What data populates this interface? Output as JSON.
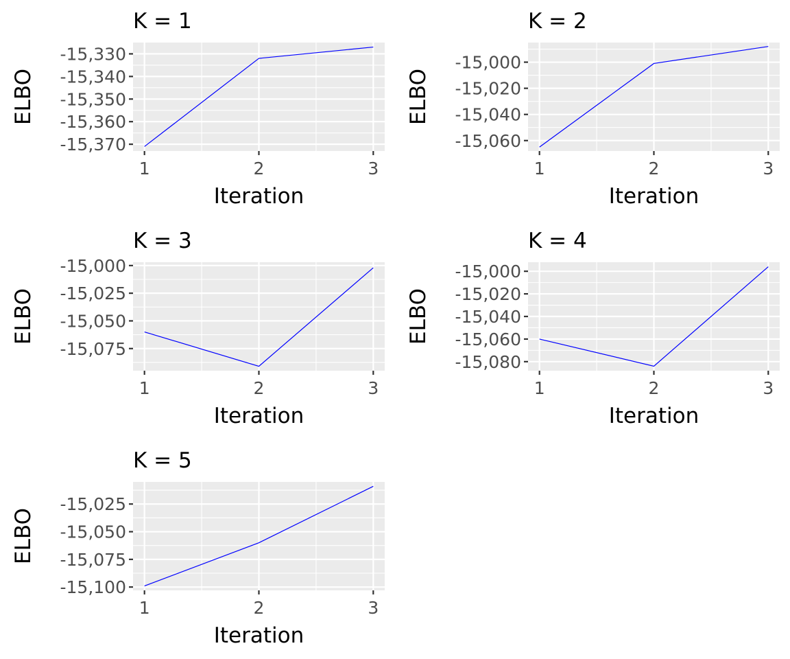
{
  "chart_data": [
    {
      "type": "line",
      "title": "K = 1",
      "xlabel": "Iteration",
      "ylabel": "ELBO",
      "x": [
        1,
        2,
        3
      ],
      "series": [
        {
          "values": [
            -15371,
            -15332,
            -15327
          ]
        }
      ],
      "xticks": [
        1,
        2,
        3
      ],
      "xtick_labels": [
        "1",
        "2",
        "3"
      ],
      "yticks": [
        -15370,
        -15360,
        -15350,
        -15340,
        -15330
      ],
      "ytick_labels": [
        "-15,370",
        "-15,360",
        "-15,350",
        "-15,340",
        "-15,330"
      ],
      "xlim": [
        0.9,
        3.1
      ],
      "ylim": [
        -15373,
        -15325
      ],
      "grid": true,
      "color": "#0000ff"
    },
    {
      "type": "line",
      "title": "K = 2",
      "xlabel": "Iteration",
      "ylabel": "ELBO",
      "x": [
        1,
        2,
        3
      ],
      "series": [
        {
          "values": [
            -15065,
            -15001,
            -14988
          ]
        }
      ],
      "xticks": [
        1,
        2,
        3
      ],
      "xtick_labels": [
        "1",
        "2",
        "3"
      ],
      "yticks": [
        -15060,
        -15040,
        -15020,
        -15000
      ],
      "ytick_labels": [
        "-15,060",
        "-15,040",
        "-15,020",
        "-15,000"
      ],
      "xlim": [
        0.9,
        3.1
      ],
      "ylim": [
        -15068,
        -14985
      ],
      "grid": true,
      "color": "#0000ff"
    },
    {
      "type": "line",
      "title": "K = 3",
      "xlabel": "Iteration",
      "ylabel": "ELBO",
      "x": [
        1,
        2,
        3
      ],
      "series": [
        {
          "values": [
            -15060,
            -15091,
            -15002
          ]
        }
      ],
      "xticks": [
        1,
        2,
        3
      ],
      "xtick_labels": [
        "1",
        "2",
        "3"
      ],
      "yticks": [
        -15075,
        -15050,
        -15025,
        -15000
      ],
      "ytick_labels": [
        "-15,075",
        "-15,050",
        "-15,025",
        "-15,000"
      ],
      "xlim": [
        0.9,
        3.1
      ],
      "ylim": [
        -15095,
        -14997
      ],
      "grid": true,
      "color": "#0000ff"
    },
    {
      "type": "line",
      "title": "K = 4",
      "xlabel": "Iteration",
      "ylabel": "ELBO",
      "x": [
        1,
        2,
        3
      ],
      "series": [
        {
          "values": [
            -15060,
            -15084,
            -14996
          ]
        }
      ],
      "xticks": [
        1,
        2,
        3
      ],
      "xtick_labels": [
        "1",
        "2",
        "3"
      ],
      "yticks": [
        -15080,
        -15060,
        -15040,
        -15020,
        -15000
      ],
      "ytick_labels": [
        "-15,080",
        "-15,060",
        "-15,040",
        "-15,020",
        "-15,000"
      ],
      "xlim": [
        0.9,
        3.1
      ],
      "ylim": [
        -15088,
        -14992
      ],
      "grid": true,
      "color": "#0000ff"
    },
    {
      "type": "line",
      "title": "K = 5",
      "xlabel": "Iteration",
      "ylabel": "ELBO",
      "x": [
        1,
        2,
        3
      ],
      "series": [
        {
          "values": [
            -15099,
            -15060,
            -15009
          ]
        }
      ],
      "xticks": [
        1,
        2,
        3
      ],
      "xtick_labels": [
        "1",
        "2",
        "3"
      ],
      "yticks": [
        -15100,
        -15075,
        -15050,
        -15025
      ],
      "ytick_labels": [
        "-15,100",
        "-15,075",
        "-15,050",
        "-15,025"
      ],
      "xlim": [
        0.9,
        3.1
      ],
      "ylim": [
        -15103,
        -15005
      ],
      "grid": true,
      "color": "#0000ff"
    }
  ]
}
